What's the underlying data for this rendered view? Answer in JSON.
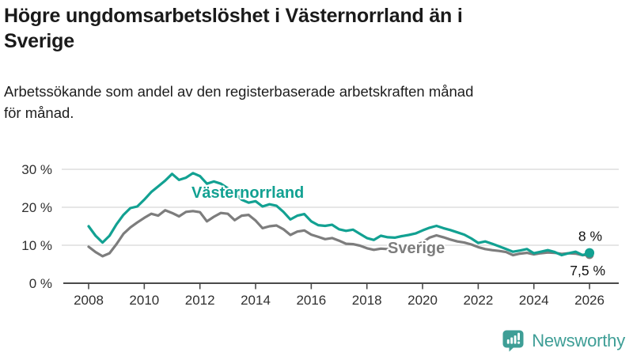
{
  "header": {
    "title": "Högre ungdomsarbetslöshet i Västernorrland än i Sverige",
    "title_lines": [
      "Högre ungdomsarbetslöshet i Västernorrland än i",
      "Sverige"
    ],
    "subtitle": "Arbetssökande som andel av den registerbaserade arbetskraften månad för månad.",
    "subtitle_lines": [
      "Arbetssökande som andel av den registerbaserade arbetskraften månad",
      "för månad."
    ]
  },
  "chart_data": {
    "type": "line",
    "title": "Högre ungdomsarbetslöshet i Västernorrland än i Sverige",
    "xlabel": "",
    "ylabel": "Arbetssökande som andel av den registerbaserade arbetskraften (%)",
    "x_unit": "decimal year, quarterly samples of the monthly series",
    "xlim": [
      2008,
      2026.1
    ],
    "ylim": [
      0,
      32
    ],
    "grid": "horizontal",
    "legend_position": "inline labels on lines",
    "yticks": [
      0,
      10,
      20,
      30
    ],
    "ytick_labels": [
      "0 %",
      "10 %",
      "20 %",
      "30 %"
    ],
    "xticks": [
      2008,
      2010,
      2012,
      2014,
      2016,
      2018,
      2020,
      2022,
      2024,
      2026
    ],
    "xtick_labels": [
      "2008",
      "2010",
      "2012",
      "2014",
      "2016",
      "2018",
      "2020",
      "2022",
      "2024",
      "2026"
    ],
    "x": [
      2008,
      2008.25,
      2008.5,
      2008.75,
      2009,
      2009.25,
      2009.5,
      2009.75,
      2010,
      2010.25,
      2010.5,
      2010.75,
      2011,
      2011.25,
      2011.5,
      2011.75,
      2012,
      2012.25,
      2012.5,
      2012.75,
      2013,
      2013.25,
      2013.5,
      2013.75,
      2014,
      2014.25,
      2014.5,
      2014.75,
      2015,
      2015.25,
      2015.5,
      2015.75,
      2016,
      2016.25,
      2016.5,
      2016.75,
      2017,
      2017.25,
      2017.5,
      2017.75,
      2018,
      2018.25,
      2018.5,
      2018.75,
      2019,
      2019.25,
      2019.5,
      2019.75,
      2020,
      2020.25,
      2020.5,
      2020.75,
      2021,
      2021.25,
      2021.5,
      2021.75,
      2022,
      2022.25,
      2022.5,
      2022.75,
      2023,
      2023.25,
      2023.5,
      2023.75,
      2024,
      2024.25,
      2024.5,
      2024.75,
      2025,
      2025.25,
      2025.5,
      2025.75,
      2026
    ],
    "series": [
      {
        "name": "Sverige",
        "color": "#7d7d7d",
        "end_value_label": "7,5 %",
        "values": [
          9.6,
          8.2,
          7.1,
          7.9,
          10.3,
          13.0,
          14.7,
          16.0,
          17.2,
          18.3,
          17.8,
          19.2,
          18.5,
          17.6,
          18.8,
          19.0,
          18.7,
          16.3,
          17.5,
          18.5,
          18.3,
          16.6,
          17.8,
          18.0,
          16.5,
          14.5,
          15.0,
          15.2,
          14.2,
          12.7,
          13.6,
          13.9,
          12.8,
          12.2,
          11.6,
          11.9,
          11.2,
          10.4,
          10.3,
          9.9,
          9.2,
          8.8,
          9.1,
          9.0,
          8.9,
          9.2,
          9.6,
          10.0,
          10.8,
          12.0,
          12.6,
          12.1,
          11.5,
          11.0,
          10.7,
          10.2,
          9.5,
          9.0,
          8.7,
          8.5,
          8.2,
          7.4,
          7.8,
          8.0,
          7.6,
          7.9,
          8.1,
          8.0,
          7.7,
          7.9,
          7.8,
          7.4,
          7.5
        ]
      },
      {
        "name": "Västernorrland",
        "color": "#12a192",
        "end_value_label": "8 %",
        "values": [
          15.0,
          12.5,
          10.7,
          12.5,
          15.5,
          18.0,
          19.8,
          20.2,
          22.0,
          24.0,
          25.5,
          27.0,
          28.8,
          27.2,
          27.8,
          29.0,
          28.2,
          26.2,
          26.8,
          26.2,
          25.0,
          23.8,
          22.0,
          21.2,
          21.6,
          20.2,
          20.8,
          20.4,
          18.8,
          16.8,
          17.8,
          18.2,
          16.3,
          15.3,
          15.1,
          15.4,
          14.2,
          13.8,
          14.1,
          13.0,
          11.9,
          11.4,
          12.5,
          12.1,
          12.0,
          12.4,
          12.7,
          13.1,
          13.9,
          14.6,
          15.1,
          14.5,
          14.0,
          13.4,
          12.8,
          11.8,
          10.6,
          11.0,
          10.4,
          9.7,
          9.0,
          8.3,
          8.6,
          9.0,
          7.9,
          8.3,
          8.7,
          8.2,
          7.4,
          7.9,
          8.3,
          7.4,
          8.0
        ]
      }
    ]
  },
  "footer": {
    "brand": "Newsworthy"
  },
  "colors": {
    "vasternorrland_line": "#12a192",
    "sverige_line": "#7d7d7d",
    "grid": "#d8d8d8",
    "axis": "#4a4a4a",
    "text": "#1a1a1a",
    "logo_teal": "#3e9e96"
  }
}
